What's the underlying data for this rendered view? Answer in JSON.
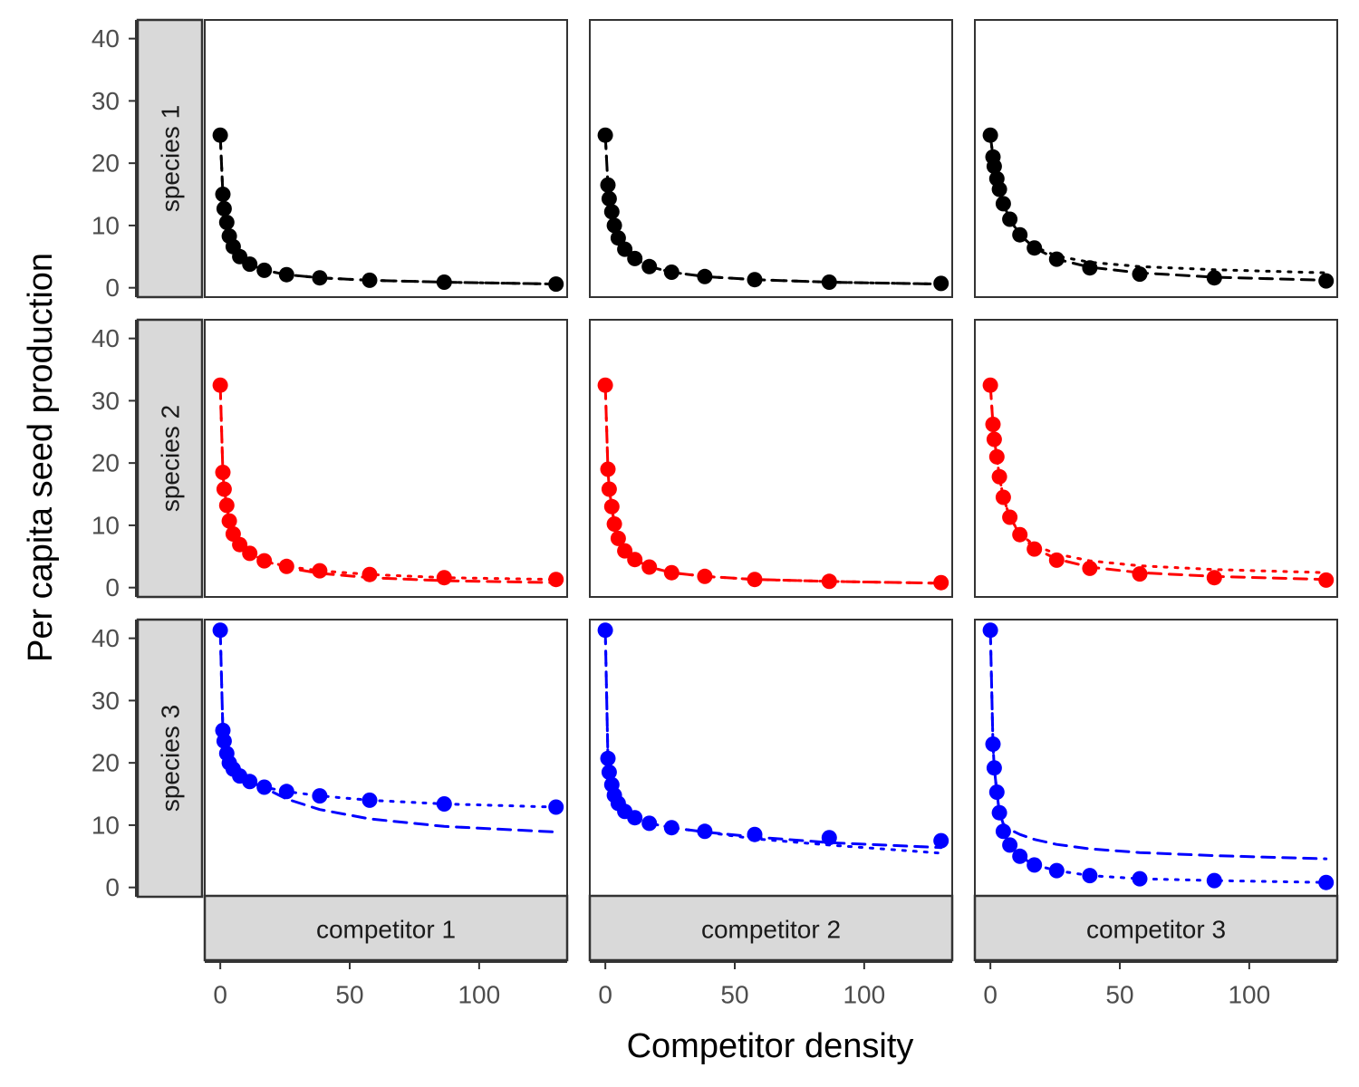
{
  "chart_data": {
    "type": "scatter",
    "xlabel": "Competitor density",
    "ylabel": "Per capita seed production",
    "xlim": [
      -6,
      134
    ],
    "ylim": [
      -1.5,
      43
    ],
    "x_ticks": [
      0,
      50,
      100
    ],
    "y_ticks": [
      0,
      10,
      20,
      30,
      40
    ],
    "grid": false,
    "legend": "none",
    "row_facets": [
      {
        "label": "species 1",
        "color": "#000000"
      },
      {
        "label": "species 2",
        "color": "#ff0000"
      },
      {
        "label": "species 3",
        "color": "#0000ff"
      }
    ],
    "col_facets": [
      {
        "label": "competitor 1"
      },
      {
        "label": "competitor 2"
      },
      {
        "label": "competitor 3"
      }
    ],
    "x": [
      0,
      1,
      1.5,
      2.5,
      3.5,
      5,
      7.5,
      11.4,
      17,
      25.6,
      38.4,
      57.7,
      86.5,
      129.7
    ],
    "panels": [
      {
        "row": 0,
        "col": 0,
        "points": [
          24.5,
          15,
          12.7,
          10.5,
          8.3,
          6.6,
          5,
          3.8,
          2.8,
          2.1,
          1.6,
          1.2,
          0.9,
          0.6
        ],
        "fit_a": {
          "style": "dashed",
          "values": [
            24.5,
            15,
            12.7,
            10.5,
            8.3,
            6.6,
            5,
            3.8,
            2.8,
            2.1,
            1.6,
            1.2,
            0.9,
            0.6
          ]
        },
        "fit_b": {
          "style": "dotted",
          "values": [
            24.5,
            15,
            12.7,
            10.5,
            8.3,
            6.6,
            5,
            3.8,
            2.8,
            2.1,
            1.6,
            1.2,
            0.9,
            0.6
          ]
        }
      },
      {
        "row": 0,
        "col": 1,
        "points": [
          24.5,
          16.5,
          14.3,
          12.2,
          10,
          8,
          6.2,
          4.7,
          3.4,
          2.5,
          1.8,
          1.3,
          0.9,
          0.7
        ],
        "fit_a": {
          "style": "dashed",
          "values": [
            24.5,
            16.5,
            14.3,
            12.2,
            10,
            8,
            6.2,
            4.7,
            3.4,
            2.5,
            1.8,
            1.3,
            0.9,
            0.6
          ]
        },
        "fit_b": {
          "style": "dotted",
          "values": [
            24.5,
            16.5,
            14.3,
            12.2,
            10,
            8,
            6.2,
            4.7,
            3.4,
            2.5,
            1.8,
            1.3,
            0.9,
            0.6
          ]
        }
      },
      {
        "row": 0,
        "col": 2,
        "points": [
          24.5,
          21,
          19.5,
          17.5,
          15.8,
          13.5,
          11,
          8.5,
          6.4,
          4.6,
          3.2,
          2.2,
          1.6,
          1.1
        ],
        "fit_a": {
          "style": "dashed",
          "values": [
            24.5,
            21,
            19.5,
            17.5,
            15.8,
            13.5,
            11,
            8.5,
            6.4,
            4.6,
            3.3,
            2.4,
            1.7,
            1.2
          ]
        },
        "fit_b": {
          "style": "dotted",
          "values": [
            24.5,
            21,
            19.5,
            17.5,
            15.8,
            13.5,
            11,
            8.6,
            6.6,
            5.1,
            4.1,
            3.4,
            2.9,
            2.4
          ]
        }
      },
      {
        "row": 1,
        "col": 0,
        "points": [
          32.5,
          18.5,
          15.8,
          13.2,
          10.7,
          8.6,
          6.9,
          5.5,
          4.3,
          3.4,
          2.7,
          2.1,
          1.6,
          1.3
        ],
        "fit_a": {
          "style": "dashed",
          "values": [
            32.5,
            18.5,
            15.8,
            13.2,
            10.7,
            8.6,
            6.9,
            5.5,
            4.3,
            3.2,
            2.3,
            1.6,
            1.1,
            0.8
          ]
        },
        "fit_b": {
          "style": "dotted",
          "values": [
            32.5,
            18.5,
            15.8,
            13.2,
            10.7,
            8.6,
            6.9,
            5.5,
            4.3,
            3.4,
            2.7,
            2.1,
            1.6,
            1.3
          ]
        }
      },
      {
        "row": 1,
        "col": 1,
        "points": [
          32.5,
          19,
          15.8,
          13,
          10.2,
          7.9,
          5.9,
          4.5,
          3.3,
          2.4,
          1.8,
          1.3,
          1,
          0.8
        ],
        "fit_a": {
          "style": "dashed",
          "values": [
            32.5,
            19,
            15.8,
            13,
            10.2,
            7.9,
            5.9,
            4.5,
            3.3,
            2.4,
            1.8,
            1.3,
            1,
            0.7
          ]
        },
        "fit_b": {
          "style": "dotted",
          "values": [
            32.5,
            19,
            15.8,
            13,
            10.2,
            7.9,
            5.9,
            4.5,
            3.3,
            2.4,
            1.8,
            1.3,
            1,
            0.7
          ]
        }
      },
      {
        "row": 1,
        "col": 2,
        "points": [
          32.5,
          26.2,
          23.8,
          21,
          17.8,
          14.5,
          11.3,
          8.5,
          6.2,
          4.4,
          3.1,
          2.2,
          1.6,
          1.2
        ],
        "fit_a": {
          "style": "dashed",
          "values": [
            32.5,
            26.2,
            23.8,
            21,
            17.8,
            14.5,
            11.3,
            8.5,
            6.3,
            4.6,
            3.3,
            2.4,
            1.8,
            1.3
          ]
        },
        "fit_b": {
          "style": "dotted",
          "values": [
            32.5,
            26.2,
            23.8,
            21,
            17.8,
            14.5,
            11.3,
            8.6,
            6.8,
            5.4,
            4.3,
            3.5,
            2.9,
            2.4
          ]
        }
      },
      {
        "row": 2,
        "col": 0,
        "points": [
          41.3,
          25.2,
          23.5,
          21.5,
          20,
          19,
          17.9,
          17,
          16.1,
          15.4,
          14.7,
          14,
          13.4,
          12.9
        ],
        "fit_a": {
          "style": "dashed",
          "values": [
            41.3,
            25.2,
            23.5,
            21.5,
            20,
            19,
            17.9,
            17,
            16,
            14.2,
            12.5,
            11,
            9.8,
            8.9
          ]
        },
        "fit_b": {
          "style": "dotted",
          "values": [
            41.3,
            25.2,
            23.5,
            21.5,
            20,
            19,
            17.9,
            17,
            16.1,
            15.4,
            14.7,
            14,
            13.4,
            12.9
          ]
        }
      },
      {
        "row": 2,
        "col": 1,
        "points": [
          41.3,
          20.7,
          18.5,
          16.5,
          14.8,
          13.5,
          12.2,
          11.2,
          10.3,
          9.6,
          9,
          8.5,
          8,
          7.5
        ],
        "fit_a": {
          "style": "dashed",
          "values": [
            41.3,
            20.7,
            18.5,
            16.5,
            14.8,
            13.5,
            12.2,
            11.2,
            10.3,
            9.6,
            8.9,
            8.1,
            7.2,
            6.4
          ]
        },
        "fit_b": {
          "style": "dotted",
          "values": [
            41.3,
            20.7,
            18.5,
            16.5,
            14.8,
            13.5,
            12.2,
            11.2,
            10.3,
            9.6,
            8.9,
            7.8,
            6.8,
            5.5
          ]
        }
      },
      {
        "row": 2,
        "col": 2,
        "points": [
          41.3,
          23,
          19.2,
          15.3,
          12,
          9,
          6.8,
          5,
          3.6,
          2.7,
          1.9,
          1.4,
          1.1,
          0.8
        ],
        "fit_a": {
          "style": "dashed",
          "values": [
            41.3,
            23,
            19.2,
            15.3,
            12,
            10.2,
            9.3,
            8.5,
            7.7,
            6.9,
            6.2,
            5.6,
            5.1,
            4.6
          ]
        },
        "fit_b": {
          "style": "dotted",
          "values": [
            41.3,
            23,
            19.2,
            15.3,
            12,
            9,
            6.8,
            5,
            3.6,
            2.7,
            1.9,
            1.4,
            1.1,
            0.8
          ]
        }
      }
    ]
  }
}
